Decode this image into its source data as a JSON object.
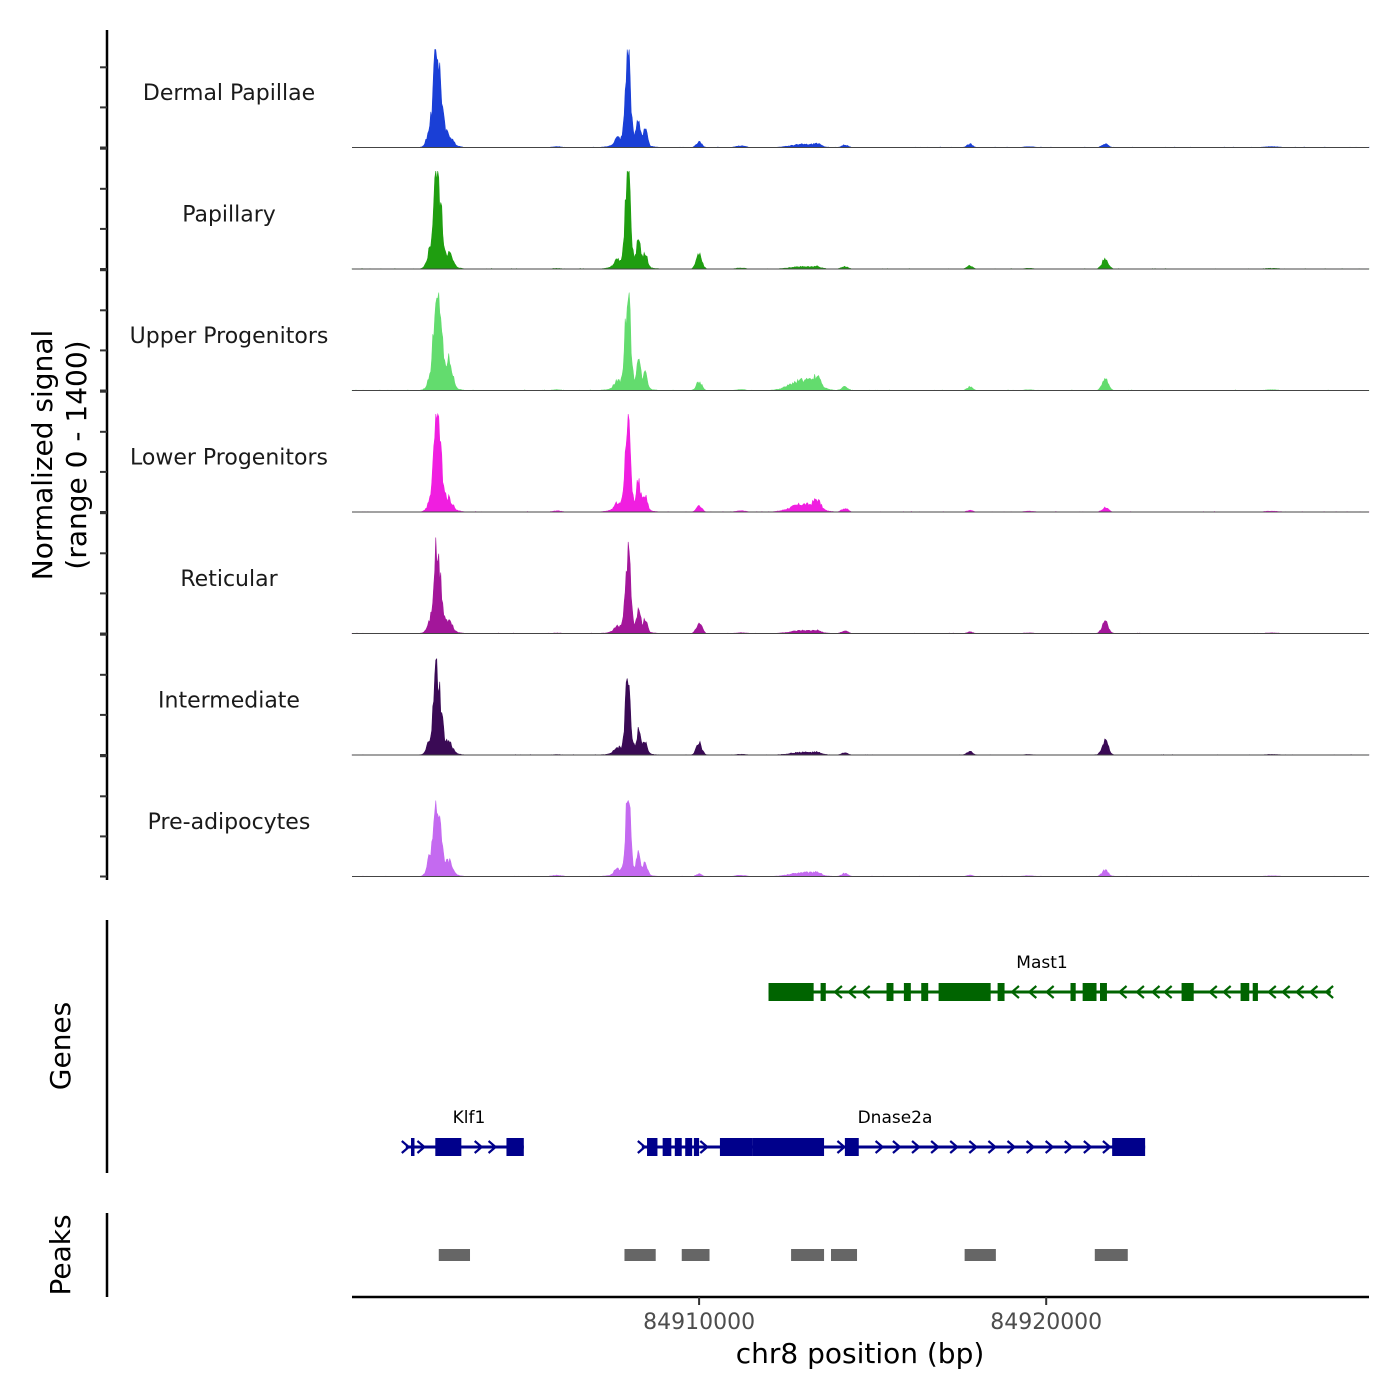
{
  "chart_data": {
    "type": "area",
    "title": "",
    "signal_axis_label_line1": "Normalized signal",
    "signal_axis_label_line2": "(range 0 - 1400)",
    "signal_range": [
      0,
      1400
    ],
    "genes_axis_label": "Genes",
    "peaks_axis_label": "Peaks",
    "xlabel": "chr8 position (bp)",
    "xlim": [
      84900000,
      84929300
    ],
    "x_ticks": [
      84910000,
      84920000
    ],
    "x_tick_labels": [
      "84910000",
      "84920000"
    ],
    "tracks": [
      {
        "name": "Dermal Papillae",
        "color": "#1a3fd6",
        "scale": 1.0
      },
      {
        "name": "Papillary",
        "color": "#1f9e10",
        "scale": 1.0
      },
      {
        "name": "Upper Progenitors",
        "color": "#63dc6e",
        "scale": 1.04
      },
      {
        "name": "Lower Progenitors",
        "color": "#f01ee0",
        "scale": 1.0
      },
      {
        "name": "Reticular",
        "color": "#a3169a",
        "scale": 0.81
      },
      {
        "name": "Intermediate",
        "color": "#3a0a55",
        "scale": 0.8
      },
      {
        "name": "Pre-adipocytes",
        "color": "#c46af0",
        "scale": 0.81
      }
    ],
    "signal_peaks": [
      {
        "pos": 84902500,
        "width": 90,
        "height": 800,
        "variation": [
          1.0,
          1.0,
          1.0,
          0.97,
          1.0,
          1.0,
          0.76
        ]
      },
      {
        "pos": 84902400,
        "width": 60,
        "height": 600,
        "variation": [
          1.0,
          1.0,
          1.0,
          1.0,
          1.0,
          1.0,
          1.0
        ]
      },
      {
        "pos": 84902250,
        "width": 80,
        "height": 220,
        "variation": [
          1.0,
          0.9,
          0.5,
          0.4,
          0.7,
          0.9,
          1.2
        ]
      },
      {
        "pos": 84902800,
        "width": 90,
        "height": 150,
        "variation": [
          0.6,
          0.8,
          1.8,
          0.6,
          0.8,
          0.8,
          1.0
        ]
      },
      {
        "pos": 84902600,
        "width": 250,
        "height": 90,
        "variation": [
          1.0,
          1.0,
          1.0,
          1.0,
          1.0,
          1.0,
          1.0
        ]
      },
      {
        "pos": 84907950,
        "width": 70,
        "height": 1150,
        "variation": [
          1.0,
          1.0,
          1.0,
          1.0,
          1.0,
          1.0,
          1.0
        ]
      },
      {
        "pos": 84908250,
        "width": 60,
        "height": 300,
        "variation": [
          1.0,
          1.0,
          1.0,
          1.0,
          1.0,
          1.0,
          1.0
        ]
      },
      {
        "pos": 84908450,
        "width": 60,
        "height": 170,
        "variation": [
          1.0,
          1.0,
          1.0,
          1.0,
          1.0,
          1.0,
          1.0
        ]
      },
      {
        "pos": 84907650,
        "width": 90,
        "height": 80,
        "variation": [
          1.0,
          1.0,
          1.0,
          1.0,
          1.0,
          1.0,
          1.0
        ]
      },
      {
        "pos": 84908000,
        "width": 350,
        "height": 60,
        "variation": [
          1.0,
          1.0,
          1.0,
          1.0,
          1.0,
          1.0,
          1.0
        ]
      },
      {
        "pos": 84910000,
        "width": 80,
        "height": 60,
        "variation": [
          1.0,
          2.8,
          1.6,
          1.2,
          2.5,
          2.8,
          0.6
        ]
      },
      {
        "pos": 84913000,
        "width": 350,
        "height": 45,
        "variation": [
          0.8,
          0.6,
          2.6,
          2.0,
          0.9,
          0.9,
          1.3
        ]
      },
      {
        "pos": 84913400,
        "width": 100,
        "height": 40,
        "variation": [
          0.7,
          0.4,
          2.5,
          2.5,
          0.6,
          0.5,
          1.0
        ]
      },
      {
        "pos": 84914200,
        "width": 90,
        "height": 30,
        "variation": [
          1.0,
          1.0,
          1.4,
          1.4,
          1.2,
          1.0,
          1.5
        ]
      },
      {
        "pos": 84917800,
        "width": 80,
        "height": 40,
        "variation": [
          1.0,
          0.9,
          1.0,
          0.5,
          0.6,
          1.3,
          0.5
        ]
      },
      {
        "pos": 84921700,
        "width": 90,
        "height": 40,
        "variation": [
          1.0,
          3.0,
          3.0,
          1.2,
          4.0,
          5.0,
          2.2
        ]
      },
      {
        "pos": 84911200,
        "width": 140,
        "height": 18,
        "variation": [
          1.0,
          0.6,
          0.6,
          0.8,
          0.6,
          0.6,
          1.0
        ]
      },
      {
        "pos": 84905900,
        "width": 140,
        "height": 14,
        "variation": [
          0.8,
          0.5,
          0.6,
          0.9,
          0.5,
          0.5,
          1.2
        ]
      },
      {
        "pos": 84919500,
        "width": 150,
        "height": 12,
        "variation": [
          0.8,
          0.6,
          0.6,
          0.8,
          0.6,
          0.6,
          1.0
        ]
      },
      {
        "pos": 84926500,
        "width": 200,
        "height": 10,
        "variation": [
          1.0,
          0.8,
          0.8,
          1.0,
          0.8,
          0.8,
          1.0
        ]
      }
    ],
    "genes": [
      {
        "name": "Mast1",
        "strand": "-",
        "color": "#006400",
        "start": 84912000,
        "end": 84928200,
        "exons": [
          [
            84912000,
            84913300
          ],
          [
            84913500,
            84913650
          ],
          [
            84915400,
            84915600
          ],
          [
            84915900,
            84916100
          ],
          [
            84916400,
            84916600
          ],
          [
            84916900,
            84918400
          ],
          [
            84918600,
            84918800
          ],
          [
            84920700,
            84920850
          ],
          [
            84921050,
            84921450
          ],
          [
            84921550,
            84921750
          ],
          [
            84923900,
            84924250
          ],
          [
            84925600,
            84925850
          ],
          [
            84925950,
            84926100
          ]
        ],
        "arrows": [
          84914000,
          84914400,
          84914800,
          84917250,
          84919100,
          84919600,
          84920100,
          84922200,
          84922700,
          84923150,
          84923500,
          84924800,
          84925200,
          84926500,
          84926900,
          84927300,
          84927700,
          84928150
        ]
      },
      {
        "name": "Klf1",
        "strand": "+",
        "color": "#00008b",
        "start": 84901550,
        "end": 84904950,
        "exons": [
          [
            84901700,
            84901800
          ],
          [
            84902400,
            84903150
          ],
          [
            84904450,
            84904950
          ]
        ],
        "arrows": [
          84901550,
          84902000,
          84903650,
          84904050
        ]
      },
      {
        "name": "Dnase2a",
        "strand": "+",
        "color": "#00008b",
        "start": 84908350,
        "end": 84922850,
        "exons": [
          [
            84908500,
            84908800
          ],
          [
            84908950,
            84909200
          ],
          [
            84909300,
            84909500
          ],
          [
            84909600,
            84909800
          ],
          [
            84909850,
            84910000
          ],
          [
            84910600,
            84911550
          ],
          [
            84911550,
            84913600
          ],
          [
            84914200,
            84914600
          ],
          [
            84921900,
            84922850
          ]
        ],
        "arrows": [
          84908350,
          84910150,
          84914100,
          84915200,
          84915700,
          84916250,
          84916800,
          84917350,
          84917900,
          84918450,
          84919000,
          84919550,
          84920100,
          84920650,
          84921200,
          84921750
        ]
      }
    ],
    "peaks": [
      [
        84902500,
        84903400
      ],
      [
        84907850,
        84908750
      ],
      [
        84909500,
        84910300
      ],
      [
        84912650,
        84913600
      ],
      [
        84913800,
        84914550
      ],
      [
        84917650,
        84918550
      ],
      [
        84921400,
        84922350
      ]
    ]
  }
}
